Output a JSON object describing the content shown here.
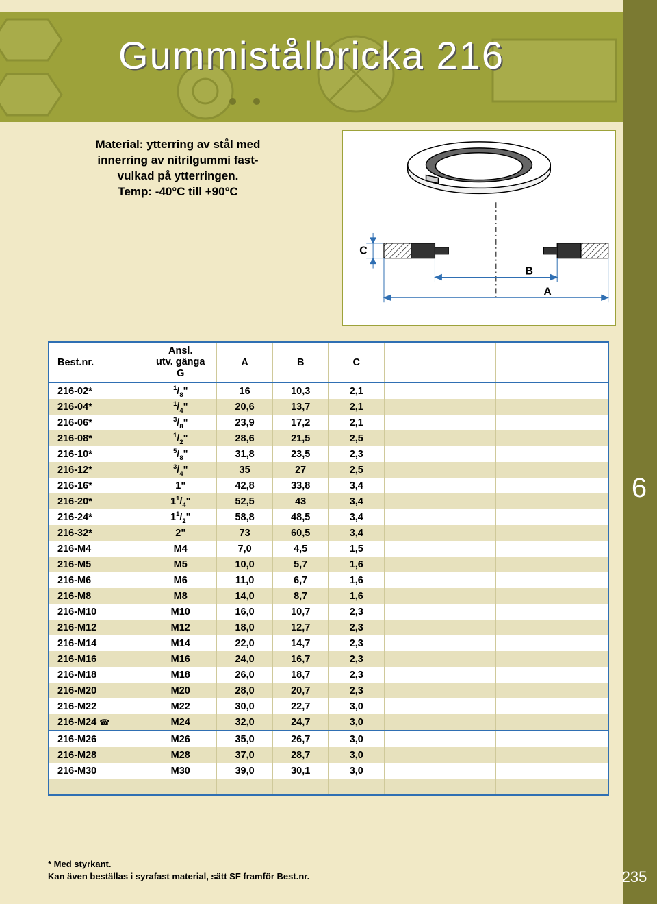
{
  "title": "Gummistålbricka 216",
  "material_lines": [
    "Material: ytterring av stål med",
    "innerring av nitrilgummi fast-",
    "vulkad på ytterringen.",
    "Temp: -40°C till +90°C"
  ],
  "section_number": "6",
  "page_number": "235",
  "diagram": {
    "labels": {
      "c": "C",
      "b": "B",
      "a": "A"
    }
  },
  "table": {
    "headers": {
      "bestnr": "Best.nr.",
      "ganga_top": "Ansl.",
      "ganga_mid": "utv. gänga",
      "ganga_bot": "G",
      "a": "A",
      "b": "B",
      "c": "C"
    },
    "rows": [
      {
        "bestnr": "216-02*",
        "ganga_html": "<span class='frac'><sup>1</sup>/<sub>8</sub>\"</span>",
        "a": "16",
        "b": "10,3",
        "c": "2,1"
      },
      {
        "bestnr": "216-04*",
        "ganga_html": "<span class='frac'><sup>1</sup>/<sub>4</sub>\"</span>",
        "a": "20,6",
        "b": "13,7",
        "c": "2,1"
      },
      {
        "bestnr": "216-06*",
        "ganga_html": "<span class='frac'><sup>3</sup>/<sub>8</sub>\"</span>",
        "a": "23,9",
        "b": "17,2",
        "c": "2,1"
      },
      {
        "bestnr": "216-08*",
        "ganga_html": "<span class='frac'><sup>1</sup>/<sub>2</sub>\"</span>",
        "a": "28,6",
        "b": "21,5",
        "c": "2,5"
      },
      {
        "bestnr": "216-10*",
        "ganga_html": "<span class='frac'><sup>5</sup>/<sub>8</sub>\"</span>",
        "a": "31,8",
        "b": "23,5",
        "c": "2,3"
      },
      {
        "bestnr": "216-12*",
        "ganga_html": "<span class='frac'><sup>3</sup>/<sub>4</sub>\"</span>",
        "a": "35",
        "b": "27",
        "c": "2,5"
      },
      {
        "bestnr": "216-16*",
        "ganga_html": "1\"",
        "a": "42,8",
        "b": "33,8",
        "c": "3,4"
      },
      {
        "bestnr": "216-20*",
        "ganga_html": "1<span class='frac'><sup>1</sup>/<sub>4</sub></span>\"",
        "a": "52,5",
        "b": "43",
        "c": "3,4"
      },
      {
        "bestnr": "216-24*",
        "ganga_html": "1<span class='frac'><sup>1</sup>/<sub>2</sub></span>\"",
        "a": "58,8",
        "b": "48,5",
        "c": "3,4"
      },
      {
        "bestnr": "216-32*",
        "ganga_html": "2\"",
        "a": "73",
        "b": "60,5",
        "c": "3,4"
      },
      {
        "bestnr": "216-M4",
        "ganga_html": "M4",
        "a": "7,0",
        "b": "4,5",
        "c": "1,5"
      },
      {
        "bestnr": "216-M5",
        "ganga_html": "M5",
        "a": "10,0",
        "b": "5,7",
        "c": "1,6"
      },
      {
        "bestnr": "216-M6",
        "ganga_html": "M6",
        "a": "11,0",
        "b": "6,7",
        "c": "1,6"
      },
      {
        "bestnr": "216-M8",
        "ganga_html": "M8",
        "a": "14,0",
        "b": "8,7",
        "c": "1,6"
      },
      {
        "bestnr": "216-M10",
        "ganga_html": "M10",
        "a": "16,0",
        "b": "10,7",
        "c": "2,3"
      },
      {
        "bestnr": "216-M12",
        "ganga_html": "M12",
        "a": "18,0",
        "b": "12,7",
        "c": "2,3"
      },
      {
        "bestnr": "216-M14",
        "ganga_html": "M14",
        "a": "22,0",
        "b": "14,7",
        "c": "2,3"
      },
      {
        "bestnr": "216-M16",
        "ganga_html": "M16",
        "a": "24,0",
        "b": "16,7",
        "c": "2,3"
      },
      {
        "bestnr": "216-M18",
        "ganga_html": "M18",
        "a": "26,0",
        "b": "18,7",
        "c": "2,3"
      },
      {
        "bestnr": "216-M20",
        "ganga_html": "M20",
        "a": "28,0",
        "b": "20,7",
        "c": "2,3"
      },
      {
        "bestnr": "216-M22",
        "ganga_html": "M22",
        "a": "30,0",
        "b": "22,7",
        "c": "3,0"
      },
      {
        "bestnr": "216-M24",
        "phone": true,
        "ganga_html": "M24",
        "a": "32,0",
        "b": "24,7",
        "c": "3,0"
      },
      {
        "bestnr": "216-M26",
        "divider": true,
        "ganga_html": "M26",
        "a": "35,0",
        "b": "26,7",
        "c": "3,0"
      },
      {
        "bestnr": "216-M28",
        "ganga_html": "M28",
        "a": "37,0",
        "b": "28,7",
        "c": "3,0"
      },
      {
        "bestnr": "216-M30",
        "ganga_html": "M30",
        "a": "39,0",
        "b": "30,1",
        "c": "3,0"
      }
    ],
    "blank_rows": 1
  },
  "footnote_lines": [
    "* Med styrkant.",
    "Kan även beställas i syrafast material, sätt SF framför Best.nr."
  ],
  "colors": {
    "page_bg": "#f1e9c6",
    "olive": "#7b7a32",
    "olive_light": "#9da23a",
    "table_border": "#2f6fb3",
    "row_alt": "#e7e1bd"
  }
}
